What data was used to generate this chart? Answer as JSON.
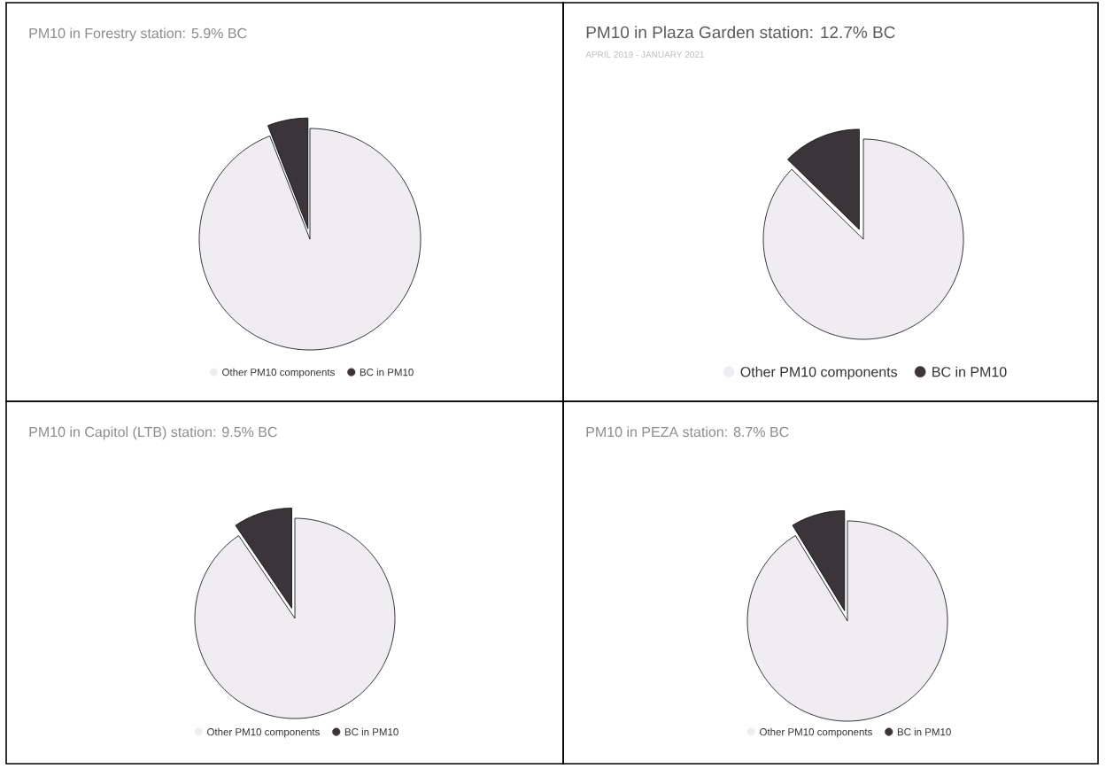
{
  "chart_data": [
    {
      "type": "pie",
      "title": "PM10 in Forestry station: 5.9% BC",
      "categories": [
        "Other PM10 components",
        "BC in PM10"
      ],
      "values": [
        94.1,
        5.9
      ],
      "colors": [
        "#efedf1",
        "#3b3539"
      ],
      "legend": "bottom"
    },
    {
      "type": "pie",
      "title": "PM10 in Plaza Garden station: 12.7% BC",
      "subtitle": "APRIL 2019 - JANUARY 2021",
      "categories": [
        "Other PM10 components",
        "BC in PM10"
      ],
      "values": [
        87.3,
        12.7
      ],
      "colors": [
        "#efedf1",
        "#3b3539"
      ],
      "legend": "bottom"
    },
    {
      "type": "pie",
      "title": "PM10 in Capitol (LTB) station: 9.5% BC",
      "categories": [
        "Other PM10 components",
        "BC in PM10"
      ],
      "values": [
        90.5,
        9.5
      ],
      "colors": [
        "#efedf1",
        "#3b3539"
      ],
      "legend": "bottom"
    },
    {
      "type": "pie",
      "title": "PM10 in PEZA station: 8.7% BC",
      "categories": [
        "Other PM10 components",
        "BC in PM10"
      ],
      "values": [
        91.3,
        8.7
      ],
      "colors": [
        "#efedf1",
        "#3b3539"
      ],
      "legend": "bottom"
    }
  ]
}
